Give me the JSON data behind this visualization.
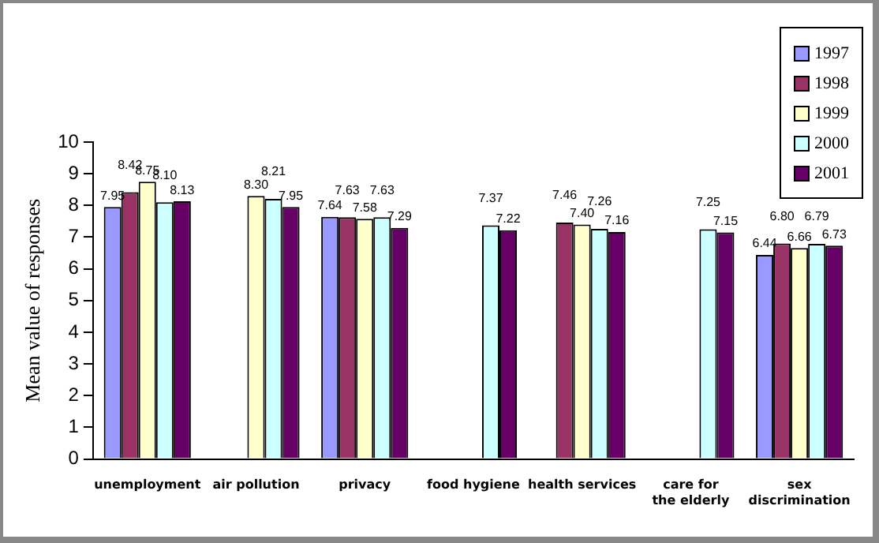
{
  "chart_data": {
    "type": "bar",
    "ylabel": "Mean value of responses",
    "categories": [
      "unemployment",
      "air pollution",
      "privacy",
      "food hygiene",
      "health services",
      "care for the elderly",
      "sex discrimination"
    ],
    "series": [
      {
        "name": "1997",
        "color": "#9999ff",
        "values": [
          7.95,
          null,
          7.64,
          null,
          null,
          null,
          6.44
        ],
        "value_labels": [
          "7.95",
          null,
          "7.64",
          null,
          null,
          null,
          "6.44"
        ]
      },
      {
        "name": "1998",
        "color": "#993366",
        "values": [
          8.42,
          null,
          7.63,
          null,
          7.46,
          null,
          6.8
        ],
        "value_labels": [
          "8.42",
          null,
          "7.63",
          null,
          "7.46",
          null,
          "6.80"
        ]
      },
      {
        "name": "1999",
        "color": "#ffffcc",
        "values": [
          8.75,
          8.3,
          7.58,
          null,
          7.4,
          null,
          6.66
        ],
        "value_labels": [
          "8.75",
          "8.30",
          "7.58",
          null,
          "7.40",
          null,
          "6.66"
        ]
      },
      {
        "name": "2000",
        "color": "#ccffff",
        "values": [
          8.1,
          8.21,
          7.63,
          7.37,
          7.26,
          7.25,
          6.79
        ],
        "value_labels": [
          "8.10",
          "8.21",
          "7.63",
          "7.37",
          "7.26",
          "7.25",
          "6.79"
        ]
      },
      {
        "name": "2001",
        "color": "#660066",
        "values": [
          8.13,
          7.95,
          7.29,
          7.22,
          7.16,
          7.15,
          6.73
        ],
        "value_labels": [
          "8.13",
          "7.95",
          "7.29",
          "7.22",
          "7.16",
          "7.15",
          "6.73"
        ]
      }
    ],
    "ylim": [
      0,
      10
    ],
    "yticks": [
      0,
      1,
      2,
      3,
      4,
      5,
      6,
      7,
      8,
      9,
      10
    ],
    "grid": false,
    "legend": "top right"
  }
}
